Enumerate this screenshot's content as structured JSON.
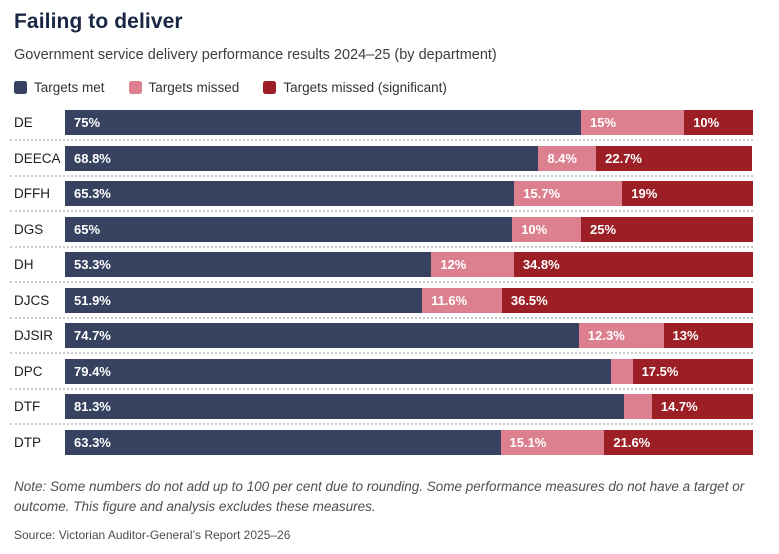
{
  "header": {
    "title": "Failing to deliver",
    "subtitle": "Government service delivery performance results 2024–25 (by department)"
  },
  "legend": [
    {
      "name": "targets-met",
      "label": "Targets met",
      "color": "#36425f"
    },
    {
      "name": "targets-missed",
      "label": "Targets missed",
      "color": "#dc8090"
    },
    {
      "name": "targets-missed-significant",
      "label": "Targets missed (significant)",
      "color": "#9c1f26"
    }
  ],
  "chart_data": {
    "type": "bar",
    "orientation": "horizontal",
    "stacked": true,
    "unit": "per cent",
    "xlim": [
      0,
      100
    ],
    "grid": false,
    "legend_position": "top",
    "categories": [
      "DE",
      "DEECA",
      "DFFH",
      "DGS",
      "DH",
      "DJCS",
      "DJSIR",
      "DPC",
      "DTF",
      "DTP"
    ],
    "series": [
      {
        "name": "Targets met",
        "color": "#36425f",
        "values": [
          75,
          68.8,
          65.3,
          65,
          53.3,
          51.9,
          74.7,
          79.4,
          81.3,
          63.3
        ],
        "labels": [
          "75%",
          "68.8%",
          "65.3%",
          "65%",
          "53.3%",
          "51.9%",
          "74.7%",
          "79.4%",
          "81.3%",
          "63.3%"
        ]
      },
      {
        "name": "Targets missed",
        "color": "#dc8090",
        "values": [
          15,
          8.4,
          15.7,
          10,
          12,
          11.6,
          12.3,
          3.1,
          4.0,
          15.1
        ],
        "labels": [
          "15%",
          "8.4%",
          "15.7%",
          "10%",
          "12%",
          "11.6%",
          "12.3%",
          "",
          "",
          "15.1%"
        ]
      },
      {
        "name": "Targets missed (significant)",
        "color": "#9c1f26",
        "values": [
          10,
          22.7,
          19,
          25,
          34.8,
          36.5,
          13,
          17.5,
          14.7,
          21.6
        ],
        "labels": [
          "10%",
          "22.7%",
          "19%",
          "25%",
          "34.8%",
          "36.5%",
          "13%",
          "17.5%",
          "14.7%",
          "21.6%"
        ]
      }
    ]
  },
  "footer": {
    "note": "Note: Some numbers do not add up to 100 per cent due to rounding. Some performance measures do not have a target or outcome. This figure and analysis excludes these measures.",
    "source": "Source: Victorian Auditor-General’s Report 2025–26"
  }
}
